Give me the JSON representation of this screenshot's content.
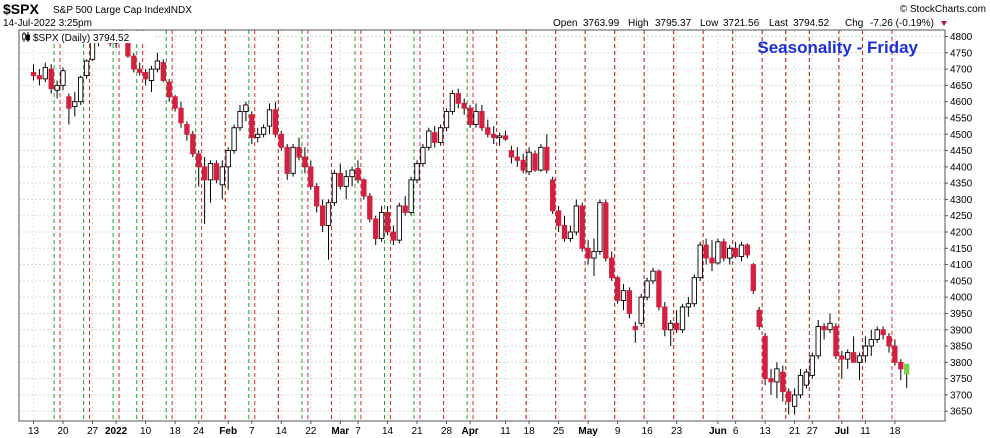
{
  "header": {
    "symbol": "$SPX",
    "description": "S&P 500 Large Cap Index",
    "exchange": "INDX",
    "date_time": "14-Jul-2022 3:25pm",
    "ohlc": [
      {
        "label": "Open",
        "value": "3763.99"
      },
      {
        "label": "High",
        "value": "3795.37"
      },
      {
        "label": "Low",
        "value": "3721.56"
      },
      {
        "label": "Last",
        "value": "3794.52"
      },
      {
        "label": "Chg",
        "value": "-7.26 (-0.19%)"
      }
    ],
    "watermark": "© StockCharts.com"
  },
  "chart_data": {
    "type": "candlestick",
    "title": "Seasonality - Friday",
    "legend": "$SPX (Daily) 3794.52",
    "legend_placement": "top-left",
    "ylim": [
      3620,
      4820
    ],
    "y_ticks": [
      3650,
      3700,
      3750,
      3800,
      3850,
      3900,
      3950,
      4000,
      4050,
      4100,
      4150,
      4200,
      4250,
      4300,
      4350,
      4400,
      4450,
      4500,
      4550,
      4600,
      4650,
      4700,
      4750,
      4800
    ],
    "y_axis_side": "right",
    "grid": true,
    "colors": {
      "up": "#ffffff",
      "down": "#d42040",
      "wick": "#000000",
      "current": "#7fce4a",
      "friday_line": "#2a9a2a",
      "monday_line": "#d42a2a"
    },
    "x_ticks": [
      {
        "label": "13",
        "bar": 0,
        "bold": false
      },
      {
        "label": "20",
        "bar": 5,
        "bold": false
      },
      {
        "label": "27",
        "bar": 10,
        "bold": false
      },
      {
        "label": "2022",
        "bar": 14,
        "bold": true
      },
      {
        "label": "10",
        "bar": 19,
        "bold": false
      },
      {
        "label": "18",
        "bar": 24,
        "bold": false
      },
      {
        "label": "24",
        "bar": 28,
        "bold": false
      },
      {
        "label": "Feb",
        "bar": 33,
        "bold": true
      },
      {
        "label": "7",
        "bar": 37,
        "bold": false
      },
      {
        "label": "14",
        "bar": 42,
        "bold": false
      },
      {
        "label": "22",
        "bar": 47,
        "bold": false
      },
      {
        "label": "Mar",
        "bar": 52,
        "bold": true
      },
      {
        "label": "7",
        "bar": 55,
        "bold": false
      },
      {
        "label": "14",
        "bar": 60,
        "bold": false
      },
      {
        "label": "21",
        "bar": 65,
        "bold": false
      },
      {
        "label": "28",
        "bar": 70,
        "bold": false
      },
      {
        "label": "Apr",
        "bar": 74,
        "bold": true
      },
      {
        "label": "11",
        "bar": 80,
        "bold": false
      },
      {
        "label": "18",
        "bar": 84,
        "bold": false
      },
      {
        "label": "25",
        "bar": 89,
        "bold": false
      },
      {
        "label": "May",
        "bar": 94,
        "bold": true
      },
      {
        "label": "9",
        "bar": 99,
        "bold": false
      },
      {
        "label": "16",
        "bar": 104,
        "bold": false
      },
      {
        "label": "23",
        "bar": 109,
        "bold": false
      },
      {
        "label": "Jun",
        "bar": 116,
        "bold": true
      },
      {
        "label": "6",
        "bar": 119,
        "bold": false
      },
      {
        "label": "13",
        "bar": 124,
        "bold": false
      },
      {
        "label": "21",
        "bar": 129,
        "bold": false
      },
      {
        "label": "27",
        "bar": 132,
        "bold": false
      },
      {
        "label": "Jul",
        "bar": 137,
        "bold": true
      },
      {
        "label": "11",
        "bar": 141,
        "bold": false
      },
      {
        "label": "18",
        "bar": 146,
        "bold": false
      }
    ],
    "candles": [
      {
        "o": 4690,
        "h": 4715,
        "l": 4665,
        "c": 4680
      },
      {
        "o": 4680,
        "h": 4700,
        "l": 4650,
        "c": 4670
      },
      {
        "o": 4670,
        "h": 4720,
        "l": 4660,
        "c": 4705
      },
      {
        "o": 4700,
        "h": 4715,
        "l": 4625,
        "c": 4640
      },
      {
        "o": 4635,
        "h": 4665,
        "l": 4610,
        "c": 4650
      },
      {
        "o": 4650,
        "h": 4705,
        "l": 4635,
        "c": 4695
      },
      {
        "o": 4615,
        "h": 4625,
        "l": 4530,
        "c": 4580
      },
      {
        "o": 4585,
        "h": 4630,
        "l": 4555,
        "c": 4600
      },
      {
        "o": 4600,
        "h": 4680,
        "l": 4590,
        "c": 4675
      },
      {
        "o": 4680,
        "h": 4730,
        "l": 4670,
        "c": 4725
      },
      {
        "o": 4730,
        "h": 4790,
        "l": 4725,
        "c": 4785
      },
      {
        "o": 4790,
        "h": 4805,
        "l": 4770,
        "c": 4795
      },
      {
        "o": 4795,
        "h": 4808,
        "l": 4780,
        "c": 4795
      },
      {
        "o": 4790,
        "h": 4800,
        "l": 4770,
        "c": 4780
      },
      {
        "o": 4780,
        "h": 4805,
        "l": 4765,
        "c": 4800
      },
      {
        "o": 4800,
        "h": 4820,
        "l": 4785,
        "c": 4793
      },
      {
        "o": 4790,
        "h": 4795,
        "l": 4735,
        "c": 4740
      },
      {
        "o": 4740,
        "h": 4750,
        "l": 4690,
        "c": 4700
      },
      {
        "o": 4700,
        "h": 4720,
        "l": 4680,
        "c": 4690
      },
      {
        "o": 4690,
        "h": 4700,
        "l": 4650,
        "c": 4670
      },
      {
        "o": 4665,
        "h": 4710,
        "l": 4630,
        "c": 4700
      },
      {
        "o": 4700,
        "h": 4750,
        "l": 4690,
        "c": 4725
      },
      {
        "o": 4720,
        "h": 4730,
        "l": 4660,
        "c": 4665
      },
      {
        "o": 4660,
        "h": 4670,
        "l": 4600,
        "c": 4615
      },
      {
        "o": 4615,
        "h": 4620,
        "l": 4570,
        "c": 4580
      },
      {
        "o": 4580,
        "h": 4600,
        "l": 4520,
        "c": 4535
      },
      {
        "o": 4530,
        "h": 4540,
        "l": 4480,
        "c": 4500
      },
      {
        "o": 4500,
        "h": 4510,
        "l": 4430,
        "c": 4440
      },
      {
        "o": 4440,
        "h": 4450,
        "l": 4340,
        "c": 4400
      },
      {
        "o": 4400,
        "h": 4430,
        "l": 4225,
        "c": 4360
      },
      {
        "o": 4360,
        "h": 4420,
        "l": 4290,
        "c": 4410
      },
      {
        "o": 4410,
        "h": 4420,
        "l": 4350,
        "c": 4360
      },
      {
        "o": 4345,
        "h": 4420,
        "l": 4300,
        "c": 4400
      },
      {
        "o": 4400,
        "h": 4460,
        "l": 4330,
        "c": 4450
      },
      {
        "o": 4450,
        "h": 4530,
        "l": 4440,
        "c": 4520
      },
      {
        "o": 4520,
        "h": 4590,
        "l": 4510,
        "c": 4570
      },
      {
        "o": 4570,
        "h": 4600,
        "l": 4540,
        "c": 4590
      },
      {
        "o": 4560,
        "h": 4570,
        "l": 4470,
        "c": 4490
      },
      {
        "o": 4490,
        "h": 4520,
        "l": 4475,
        "c": 4500
      },
      {
        "o": 4500,
        "h": 4530,
        "l": 4490,
        "c": 4520
      },
      {
        "o": 4525,
        "h": 4595,
        "l": 4500,
        "c": 4575
      },
      {
        "o": 4575,
        "h": 4600,
        "l": 4490,
        "c": 4500
      },
      {
        "o": 4500,
        "h": 4510,
        "l": 4450,
        "c": 4460
      },
      {
        "o": 4460,
        "h": 4470,
        "l": 4360,
        "c": 4380
      },
      {
        "o": 4380,
        "h": 4470,
        "l": 4370,
        "c": 4460
      },
      {
        "o": 4460,
        "h": 4490,
        "l": 4420,
        "c": 4430
      },
      {
        "o": 4430,
        "h": 4460,
        "l": 4380,
        "c": 4400
      },
      {
        "o": 4400,
        "h": 4420,
        "l": 4330,
        "c": 4340
      },
      {
        "o": 4340,
        "h": 4350,
        "l": 4260,
        "c": 4280
      },
      {
        "o": 4280,
        "h": 4300,
        "l": 4200,
        "c": 4220
      },
      {
        "o": 4220,
        "h": 4300,
        "l": 4115,
        "c": 4290
      },
      {
        "o": 4290,
        "h": 4390,
        "l": 4280,
        "c": 4380
      },
      {
        "o": 4380,
        "h": 4410,
        "l": 4330,
        "c": 4340
      },
      {
        "o": 4340,
        "h": 4390,
        "l": 4300,
        "c": 4370
      },
      {
        "o": 4370,
        "h": 4400,
        "l": 4340,
        "c": 4390
      },
      {
        "o": 4395,
        "h": 4420,
        "l": 4350,
        "c": 4360
      },
      {
        "o": 4360,
        "h": 4365,
        "l": 4300,
        "c": 4310
      },
      {
        "o": 4310,
        "h": 4320,
        "l": 4230,
        "c": 4240
      },
      {
        "o": 4240,
        "h": 4250,
        "l": 4160,
        "c": 4180
      },
      {
        "o": 4180,
        "h": 4280,
        "l": 4170,
        "c": 4260
      },
      {
        "o": 4260,
        "h": 4280,
        "l": 4190,
        "c": 4200
      },
      {
        "o": 4200,
        "h": 4220,
        "l": 4160,
        "c": 4175
      },
      {
        "o": 4175,
        "h": 4290,
        "l": 4165,
        "c": 4280
      },
      {
        "o": 4280,
        "h": 4310,
        "l": 4250,
        "c": 4260
      },
      {
        "o": 4260,
        "h": 4370,
        "l": 4250,
        "c": 4360
      },
      {
        "o": 4360,
        "h": 4420,
        "l": 4350,
        "c": 4410
      },
      {
        "o": 4410,
        "h": 4470,
        "l": 4400,
        "c": 4460
      },
      {
        "o": 4460,
        "h": 4520,
        "l": 4450,
        "c": 4510
      },
      {
        "o": 4505,
        "h": 4525,
        "l": 4460,
        "c": 4475
      },
      {
        "o": 4475,
        "h": 4530,
        "l": 4465,
        "c": 4520
      },
      {
        "o": 4520,
        "h": 4580,
        "l": 4510,
        "c": 4570
      },
      {
        "o": 4570,
        "h": 4635,
        "l": 4560,
        "c": 4625
      },
      {
        "o": 4625,
        "h": 4640,
        "l": 4580,
        "c": 4595
      },
      {
        "o": 4595,
        "h": 4610,
        "l": 4560,
        "c": 4580
      },
      {
        "o": 4580,
        "h": 4590,
        "l": 4520,
        "c": 4530
      },
      {
        "o": 4530,
        "h": 4595,
        "l": 4520,
        "c": 4570
      },
      {
        "o": 4570,
        "h": 4590,
        "l": 4510,
        "c": 4520
      },
      {
        "o": 4520,
        "h": 4545,
        "l": 4490,
        "c": 4500
      },
      {
        "o": 4500,
        "h": 4525,
        "l": 4470,
        "c": 4490
      },
      {
        "o": 4495,
        "h": 4505,
        "l": 4465,
        "c": 4495
      },
      {
        "o": 4495,
        "h": 4510,
        "l": 4480,
        "c": 4485
      },
      {
        "o": 4450,
        "h": 4465,
        "l": 4410,
        "c": 4430
      },
      {
        "o": 4430,
        "h": 4460,
        "l": 4400,
        "c": 4420
      },
      {
        "o": 4420,
        "h": 4440,
        "l": 4380,
        "c": 4390
      },
      {
        "o": 4385,
        "h": 4460,
        "l": 4375,
        "c": 4445
      },
      {
        "o": 4440,
        "h": 4450,
        "l": 4385,
        "c": 4390
      },
      {
        "o": 4390,
        "h": 4470,
        "l": 4385,
        "c": 4460
      },
      {
        "o": 4460,
        "h": 4500,
        "l": 4380,
        "c": 4390
      },
      {
        "o": 4360,
        "h": 4370,
        "l": 4255,
        "c": 4265
      },
      {
        "o": 4265,
        "h": 4280,
        "l": 4200,
        "c": 4220
      },
      {
        "o": 4220,
        "h": 4250,
        "l": 4170,
        "c": 4180
      },
      {
        "o": 4180,
        "h": 4220,
        "l": 4170,
        "c": 4200
      },
      {
        "o": 4200,
        "h": 4300,
        "l": 4190,
        "c": 4280
      },
      {
        "o": 4280,
        "h": 4290,
        "l": 4140,
        "c": 4150
      },
      {
        "o": 4150,
        "h": 4175,
        "l": 4100,
        "c": 4120
      },
      {
        "o": 4120,
        "h": 4180,
        "l": 4065,
        "c": 4140
      },
      {
        "o": 4140,
        "h": 4300,
        "l": 4130,
        "c": 4290
      },
      {
        "o": 4290,
        "h": 4300,
        "l": 4110,
        "c": 4120
      },
      {
        "o": 4120,
        "h": 4140,
        "l": 4050,
        "c": 4060
      },
      {
        "o": 4060,
        "h": 4065,
        "l": 3980,
        "c": 3990
      },
      {
        "o": 3990,
        "h": 4040,
        "l": 3960,
        "c": 4020
      },
      {
        "o": 4020,
        "h": 4030,
        "l": 3935,
        "c": 3950
      },
      {
        "o": 3910,
        "h": 3925,
        "l": 3860,
        "c": 3900
      },
      {
        "o": 3920,
        "h": 4010,
        "l": 3910,
        "c": 4000
      },
      {
        "o": 4000,
        "h": 4060,
        "l": 3990,
        "c": 4050
      },
      {
        "o": 4050,
        "h": 4090,
        "l": 4040,
        "c": 4080
      },
      {
        "o": 4080,
        "h": 4085,
        "l": 3960,
        "c": 3970
      },
      {
        "o": 3970,
        "h": 3985,
        "l": 3880,
        "c": 3900
      },
      {
        "o": 3900,
        "h": 3930,
        "l": 3850,
        "c": 3920
      },
      {
        "o": 3920,
        "h": 3960,
        "l": 3890,
        "c": 3900
      },
      {
        "o": 3900,
        "h": 3980,
        "l": 3890,
        "c": 3970
      },
      {
        "o": 3970,
        "h": 4000,
        "l": 3940,
        "c": 3980
      },
      {
        "o": 3980,
        "h": 4070,
        "l": 3970,
        "c": 4060
      },
      {
        "o": 4060,
        "h": 4170,
        "l": 4050,
        "c": 4160
      },
      {
        "o": 4160,
        "h": 4180,
        "l": 4100,
        "c": 4120
      },
      {
        "o": 4120,
        "h": 4175,
        "l": 4080,
        "c": 4105
      },
      {
        "o": 4105,
        "h": 4180,
        "l": 4100,
        "c": 4170
      },
      {
        "o": 4170,
        "h": 4180,
        "l": 4110,
        "c": 4120
      },
      {
        "o": 4120,
        "h": 4160,
        "l": 4100,
        "c": 4150
      },
      {
        "o": 4150,
        "h": 4170,
        "l": 4120,
        "c": 4125
      },
      {
        "o": 4125,
        "h": 4170,
        "l": 4110,
        "c": 4160
      },
      {
        "o": 4160,
        "h": 4165,
        "l": 4120,
        "c": 4130
      },
      {
        "o": 4100,
        "h": 4105,
        "l": 4010,
        "c": 4020
      },
      {
        "o": 3960,
        "h": 3970,
        "l": 3900,
        "c": 3910
      },
      {
        "o": 3880,
        "h": 3890,
        "l": 3730,
        "c": 3750
      },
      {
        "o": 3750,
        "h": 3780,
        "l": 3700,
        "c": 3740
      },
      {
        "o": 3740,
        "h": 3800,
        "l": 3690,
        "c": 3780
      },
      {
        "o": 3770,
        "h": 3790,
        "l": 3680,
        "c": 3710
      },
      {
        "o": 3710,
        "h": 3720,
        "l": 3640,
        "c": 3680
      },
      {
        "o": 3665,
        "h": 3720,
        "l": 3640,
        "c": 3700
      },
      {
        "o": 3700,
        "h": 3780,
        "l": 3690,
        "c": 3760
      },
      {
        "o": 3730,
        "h": 3780,
        "l": 3720,
        "c": 3770
      },
      {
        "o": 3760,
        "h": 3830,
        "l": 3750,
        "c": 3820
      },
      {
        "o": 3820,
        "h": 3930,
        "l": 3810,
        "c": 3910
      },
      {
        "o": 3910,
        "h": 3920,
        "l": 3870,
        "c": 3900
      },
      {
        "o": 3900,
        "h": 3950,
        "l": 3890,
        "c": 3920
      },
      {
        "o": 3910,
        "h": 3920,
        "l": 3810,
        "c": 3820
      },
      {
        "o": 3820,
        "h": 3835,
        "l": 3750,
        "c": 3810
      },
      {
        "o": 3810,
        "h": 3840,
        "l": 3780,
        "c": 3830
      },
      {
        "o": 3830,
        "h": 3880,
        "l": 3810,
        "c": 3800
      },
      {
        "o": 3800,
        "h": 3830,
        "l": 3745,
        "c": 3820
      },
      {
        "o": 3820,
        "h": 3880,
        "l": 3800,
        "c": 3850
      },
      {
        "o": 3850,
        "h": 3900,
        "l": 3820,
        "c": 3870
      },
      {
        "o": 3870,
        "h": 3910,
        "l": 3860,
        "c": 3900
      },
      {
        "o": 3900,
        "h": 3910,
        "l": 3870,
        "c": 3885
      },
      {
        "o": 3880,
        "h": 3890,
        "l": 3830,
        "c": 3850
      },
      {
        "o": 3850,
        "h": 3870,
        "l": 3790,
        "c": 3800
      },
      {
        "o": 3800,
        "h": 3810,
        "l": 3745,
        "c": 3780
      },
      {
        "o": 3763.99,
        "h": 3795.37,
        "l": 3721.56,
        "c": 3794.52
      }
    ],
    "friday_bars": [
      3,
      8,
      13,
      17,
      22,
      27,
      32,
      36,
      41,
      45,
      50,
      54,
      59,
      64,
      69,
      73,
      78,
      83,
      88,
      93,
      98,
      103,
      108,
      113,
      118,
      123,
      127,
      131,
      136,
      140
    ],
    "monday_bars": [
      5,
      10,
      15,
      19,
      24,
      29,
      33,
      38,
      42,
      47,
      51,
      56,
      61,
      66,
      70,
      75,
      79,
      84,
      89,
      94,
      99,
      104,
      109,
      114,
      119,
      124,
      128,
      132,
      137,
      141,
      146
    ]
  }
}
